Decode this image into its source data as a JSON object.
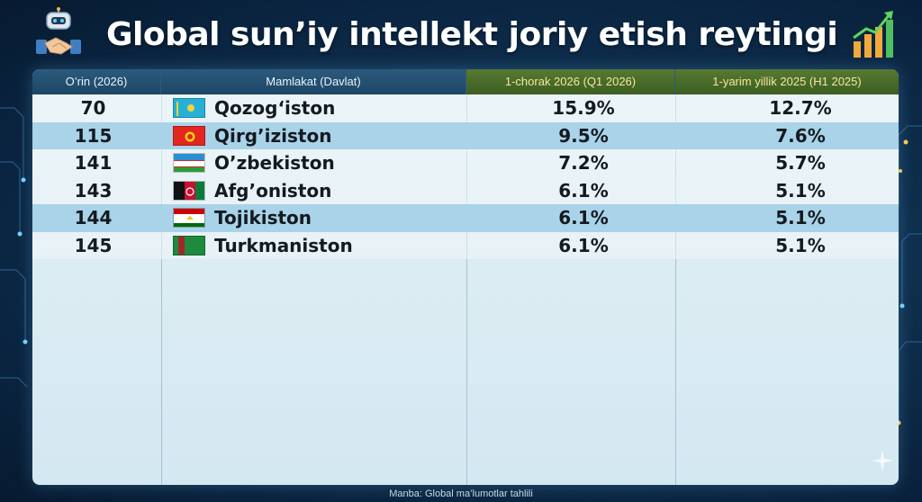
{
  "header": {
    "title": "Global sun’iy intellekt joriy etish reytingi",
    "left_icon": "robot-handshake-icon",
    "right_icon": "growth-chart-icon"
  },
  "table": {
    "columns": [
      "O’rin (2026)",
      "Mamlakat (Davlat)",
      "1-chorak 2026 (Q1 2026)",
      "1-yarim yillik 2025 (H1 2025)"
    ],
    "rows": [
      {
        "rank": "70",
        "country": "Qozog‘iston",
        "flag": "kazakhstan-flag-icon",
        "q1": "15.9%",
        "h1": "12.7%"
      },
      {
        "rank": "115",
        "country": "Qirg’iziston",
        "flag": "kyrgyzstan-flag-icon",
        "q1": "9.5%",
        "h1": "7.6%"
      },
      {
        "rank": "141",
        "country": "O’zbekiston",
        "flag": "uzbekistan-flag-icon",
        "q1": "7.2%",
        "h1": "5.7%"
      },
      {
        "rank": "143",
        "country": "Afg’oniston",
        "flag": "afghanistan-flag-icon",
        "q1": "6.1%",
        "h1": "5.1%"
      },
      {
        "rank": "144",
        "country": "Tojikiston",
        "flag": "tajikistan-flag-icon",
        "q1": "6.1%",
        "h1": "5.1%"
      },
      {
        "rank": "145",
        "country": "Turkmaniston",
        "flag": "turkmenistan-flag-icon",
        "q1": "6.1%",
        "h1": "5.1%"
      }
    ]
  },
  "footer": {
    "source": "Manba: Global ma’lumotlar tahlili"
  },
  "colors": {
    "background": "#0f3150",
    "header_dark": "#1d4666",
    "header_green": "#3c5e22",
    "header_green_text": "#f6e79a",
    "highlight_row": "#a9d3e8"
  }
}
